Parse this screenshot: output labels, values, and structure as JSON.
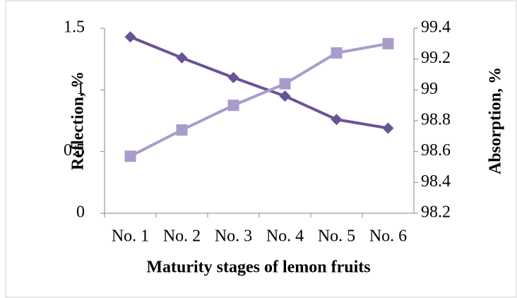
{
  "chart_data": {
    "type": "line",
    "x_label": "Maturity stages of lemon fruits",
    "y_label": "Reflection, %",
    "y2_label": "Absorption, %",
    "categories": [
      "No. 1",
      "No. 2",
      "No. 3",
      "No. 4",
      "No. 5",
      "No. 6"
    ],
    "series": [
      {
        "name": "Reflection",
        "color": "#6a5295",
        "marker": "diamond",
        "axis": "y",
        "values": [
          1.43,
          1.26,
          1.1,
          0.95,
          0.76,
          0.69
        ]
      },
      {
        "name": "Absorption",
        "color": "#a99ccb",
        "marker": "square",
        "axis": "y2",
        "values": [
          98.57,
          98.74,
          98.9,
          99.04,
          99.24,
          99.3
        ]
      }
    ],
    "ylim": [
      0,
      1.5
    ],
    "yticks": [
      0,
      0.5,
      1,
      1.5
    ],
    "y2lim": [
      98.2,
      99.4
    ],
    "y2ticks": [
      98.2,
      98.4,
      98.6,
      98.8,
      99,
      99.2,
      99.4
    ]
  }
}
